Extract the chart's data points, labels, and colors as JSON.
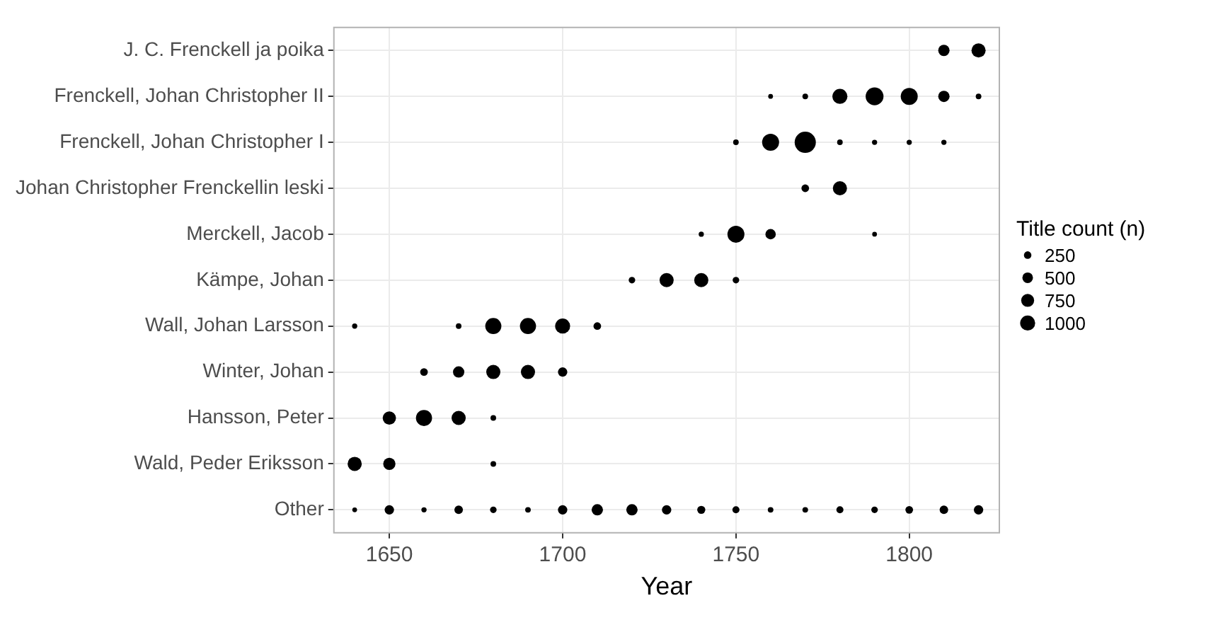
{
  "chart_data": {
    "type": "bubble",
    "orientation": "horizontal",
    "xlabel": "Year",
    "legend_title": "Title count (n)",
    "grid": true,
    "marker": "circle",
    "categories": [
      "J. C. Frenckell ja poika",
      "Frenckell, Johan Christopher II",
      "Frenckell, Johan Christopher I",
      "Johan Christopher Frenckellin leski",
      "Merckell, Jacob",
      "Kämpe, Johan",
      "Wall, Johan Larsson",
      "Winter, Johan",
      "Hansson, Peter",
      "Wald, Peder Eriksson",
      "Other"
    ],
    "xlim": [
      1634,
      1826
    ],
    "xticks": [
      1650,
      1700,
      1750,
      1800
    ],
    "size_legend": [
      250,
      500,
      750,
      1000
    ],
    "series": [
      {
        "color": "#000000",
        "values": [
          null,
          null,
          null,
          null,
          null,
          null,
          1640,
          null,
          null,
          1640,
          1640
        ],
        "sizes": [
          null,
          null,
          null,
          null,
          null,
          null,
          120,
          null,
          null,
          890,
          100
        ]
      },
      {
        "color": "#000000",
        "values": [
          null,
          null,
          null,
          null,
          null,
          null,
          null,
          null,
          1650,
          1650,
          1650
        ],
        "sizes": [
          null,
          null,
          null,
          null,
          null,
          null,
          null,
          null,
          780,
          660,
          390
        ]
      },
      {
        "color": "#000000",
        "values": [
          null,
          null,
          null,
          null,
          null,
          null,
          null,
          1660,
          1660,
          null,
          1660
        ],
        "sizes": [
          null,
          null,
          null,
          null,
          null,
          null,
          null,
          260,
          1150,
          null,
          120
        ]
      },
      {
        "color": "#000000",
        "values": [
          null,
          null,
          null,
          null,
          null,
          null,
          1670,
          1670,
          1670,
          null,
          1670
        ],
        "sizes": [
          null,
          null,
          null,
          null,
          null,
          null,
          140,
          570,
          890,
          null,
          320
        ]
      },
      {
        "color": "#000000",
        "values": [
          null,
          null,
          null,
          null,
          null,
          null,
          1680,
          1680,
          1680,
          1680,
          1680
        ],
        "sizes": [
          null,
          null,
          null,
          null,
          null,
          null,
          1150,
          890,
          140,
          140,
          190
        ]
      },
      {
        "color": "#000000",
        "values": [
          null,
          null,
          null,
          null,
          null,
          null,
          1690,
          1690,
          null,
          null,
          1690
        ],
        "sizes": [
          null,
          null,
          null,
          null,
          null,
          null,
          1150,
          890,
          null,
          null,
          140
        ]
      },
      {
        "color": "#000000",
        "values": [
          null,
          null,
          null,
          null,
          null,
          null,
          1700,
          1700,
          null,
          null,
          1700
        ],
        "sizes": [
          null,
          null,
          null,
          null,
          null,
          null,
          1000,
          390,
          null,
          null,
          390
        ]
      },
      {
        "color": "#000000",
        "values": [
          null,
          null,
          null,
          null,
          null,
          null,
          1710,
          null,
          null,
          null,
          1710
        ],
        "sizes": [
          null,
          null,
          null,
          null,
          null,
          null,
          260,
          null,
          null,
          null,
          570
        ]
      },
      {
        "color": "#000000",
        "values": [
          null,
          null,
          null,
          null,
          null,
          1720,
          null,
          null,
          null,
          null,
          1720
        ],
        "sizes": [
          null,
          null,
          null,
          null,
          null,
          190,
          null,
          null,
          null,
          null,
          570
        ]
      },
      {
        "color": "#000000",
        "values": [
          null,
          null,
          null,
          null,
          null,
          1730,
          null,
          null,
          null,
          null,
          1730
        ],
        "sizes": [
          null,
          null,
          null,
          null,
          null,
          890,
          null,
          null,
          null,
          null,
          390
        ]
      },
      {
        "color": "#000000",
        "values": [
          null,
          null,
          null,
          null,
          1740,
          1740,
          null,
          null,
          null,
          null,
          1740
        ],
        "sizes": [
          null,
          null,
          null,
          null,
          120,
          890,
          null,
          null,
          null,
          null,
          290
        ]
      },
      {
        "color": "#000000",
        "values": [
          null,
          null,
          1750,
          null,
          1750,
          1750,
          null,
          null,
          null,
          null,
          1750
        ],
        "sizes": [
          null,
          null,
          140,
          null,
          1280,
          190,
          null,
          null,
          null,
          null,
          220
        ]
      },
      {
        "color": "#000000",
        "values": [
          null,
          1760,
          1760,
          null,
          1760,
          null,
          null,
          null,
          null,
          null,
          1760
        ],
        "sizes": [
          null,
          100,
          1280,
          null,
          480,
          null,
          null,
          null,
          null,
          null,
          140
        ]
      },
      {
        "color": "#000000",
        "values": [
          null,
          1770,
          1770,
          1770,
          null,
          null,
          null,
          null,
          null,
          null,
          1770
        ],
        "sizes": [
          null,
          140,
          2000,
          260,
          null,
          null,
          null,
          null,
          null,
          null,
          140
        ]
      },
      {
        "color": "#000000",
        "values": [
          null,
          1780,
          1780,
          1780,
          null,
          null,
          null,
          null,
          null,
          null,
          1780
        ],
        "sizes": [
          null,
          1000,
          140,
          890,
          null,
          null,
          null,
          null,
          null,
          null,
          220
        ]
      },
      {
        "color": "#000000",
        "values": [
          null,
          1790,
          1790,
          null,
          1790,
          null,
          null,
          null,
          null,
          null,
          1790
        ],
        "sizes": [
          null,
          1410,
          120,
          null,
          100,
          null,
          null,
          null,
          null,
          null,
          190
        ]
      },
      {
        "color": "#000000",
        "values": [
          null,
          1800,
          1800,
          null,
          null,
          null,
          null,
          null,
          null,
          null,
          1800
        ],
        "sizes": [
          null,
          1280,
          120,
          null,
          null,
          null,
          null,
          null,
          null,
          null,
          260
        ]
      },
      {
        "color": "#000000",
        "values": [
          1810,
          1810,
          1810,
          null,
          null,
          null,
          null,
          null,
          null,
          null,
          1810
        ],
        "sizes": [
          570,
          570,
          120,
          null,
          null,
          null,
          null,
          null,
          null,
          null,
          320
        ]
      },
      {
        "color": "#000000",
        "values": [
          1820,
          1820,
          null,
          null,
          null,
          null,
          null,
          null,
          null,
          null,
          1820
        ],
        "sizes": [
          890,
          140,
          null,
          null,
          null,
          null,
          null,
          null,
          null,
          null,
          390
        ]
      }
    ]
  }
}
